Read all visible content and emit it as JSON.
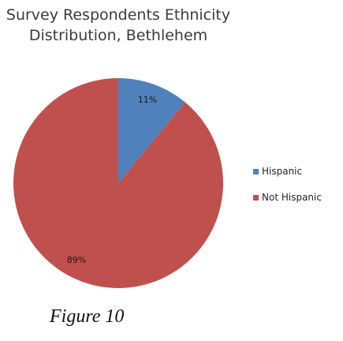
{
  "chart_data": {
    "type": "pie",
    "title": "Survey Respondents Ethnicity Distribution, Bethlehem",
    "categories": [
      "Hispanic",
      "Not Hispanic"
    ],
    "values": [
      11,
      89
    ],
    "labels": [
      "11%",
      "89%"
    ],
    "colors": [
      "#4f81bd",
      "#c0504d"
    ],
    "legend_position": "right"
  },
  "caption": "Figure 10"
}
